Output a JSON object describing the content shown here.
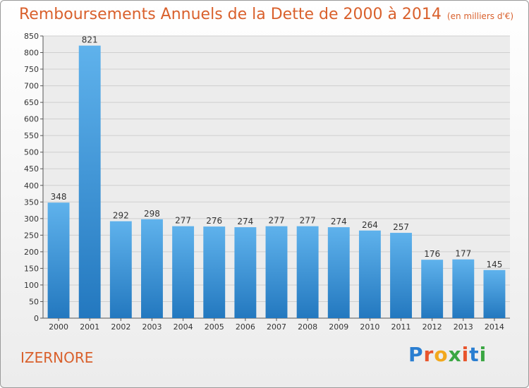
{
  "header": {
    "title": "Remboursements Annuels de la Dette de 2000 à 2014",
    "unit": "(en milliers d'€)"
  },
  "footer": {
    "town": "IZERNORE"
  },
  "logo": {
    "letters": [
      "P",
      "r",
      "o",
      "x",
      "i",
      "t",
      "i"
    ],
    "colors": [
      "#2a7ed1",
      "#e8542c",
      "#f2a81d",
      "#3aa642",
      "#e8542c",
      "#2a7ed1",
      "#3aa642"
    ]
  },
  "chart_data": {
    "type": "bar",
    "categories": [
      "2000",
      "2001",
      "2002",
      "2003",
      "2004",
      "2005",
      "2006",
      "2007",
      "2008",
      "2009",
      "2010",
      "2011",
      "2012",
      "2013",
      "2014"
    ],
    "values": [
      348,
      821,
      292,
      298,
      277,
      276,
      274,
      277,
      277,
      274,
      264,
      257,
      176,
      177,
      145
    ],
    "title": "Remboursements Annuels de la Dette de 2000 à 2014",
    "xlabel": "",
    "ylabel": "",
    "ylim": [
      0,
      850
    ],
    "yticks": [
      0,
      50,
      100,
      150,
      200,
      250,
      300,
      350,
      400,
      450,
      500,
      550,
      600,
      650,
      700,
      750,
      800,
      850
    ],
    "grid": true,
    "bar_color": "#3d9be0"
  }
}
